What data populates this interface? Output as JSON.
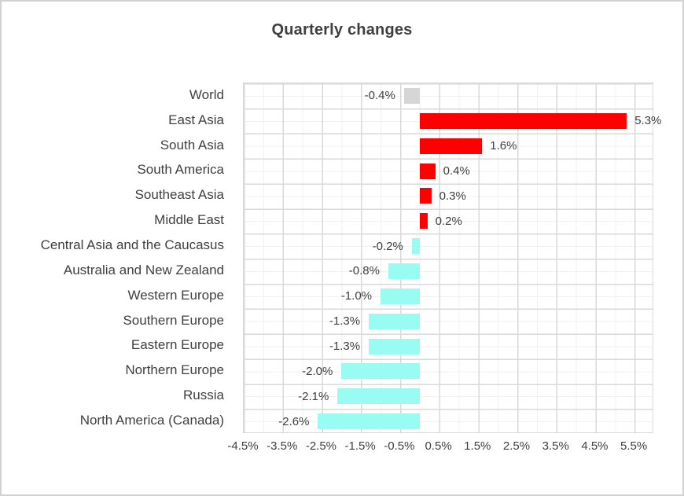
{
  "title": "Quarterly changes",
  "chart_data": {
    "type": "bar",
    "orientation": "horizontal",
    "title": "Quarterly changes",
    "xlabel": "",
    "ylabel": "",
    "legend": false,
    "grid": true,
    "categories": [
      "World",
      "East Asia",
      "South Asia",
      "South America",
      "Southeast Asia",
      "Middle East",
      "Central Asia and the Caucasus",
      "Australia and New Zealand",
      "Western Europe",
      "Southern Europe",
      "Eastern Europe",
      "Northern Europe",
      "Russia",
      "North America (Canada)"
    ],
    "values": [
      -0.4,
      5.3,
      1.6,
      0.4,
      0.3,
      0.2,
      -0.2,
      -0.8,
      -1.0,
      -1.3,
      -1.3,
      -2.0,
      -2.1,
      -2.6
    ],
    "data_labels": [
      "-0.4%",
      "5.3%",
      "1.6%",
      "0.4%",
      "0.3%",
      "0.2%",
      "-0.2%",
      "-0.8%",
      "-1.0%",
      "-1.3%",
      "-1.3%",
      "-2.0%",
      "-2.1%",
      "-2.6%"
    ],
    "bar_colors": [
      "#d6d6d6",
      "#ff0000",
      "#ff0000",
      "#ff0000",
      "#ff0000",
      "#ff0000",
      "#98fcf3",
      "#98fcf3",
      "#98fcf3",
      "#98fcf3",
      "#98fcf3",
      "#98fcf3",
      "#98fcf3",
      "#98fcf3"
    ],
    "axis": {
      "min": -4.5,
      "max": 6.0,
      "major_unit": 1.0,
      "minor_unit": 0.5,
      "ticks": [
        -4.5,
        -3.5,
        -2.5,
        -1.5,
        -0.5,
        0.5,
        1.5,
        2.5,
        3.5,
        4.5,
        5.5
      ],
      "tick_labels": [
        "-4.5%",
        "-3.5%",
        "-2.5%",
        "-1.5%",
        "-0.5%",
        "0.5%",
        "1.5%",
        "2.5%",
        "3.5%",
        "4.5%",
        "5.5%"
      ]
    },
    "colors": {
      "positive_bar": "#ff0000",
      "negative_bar": "#98fcf3",
      "world_bar": "#d6d6d6",
      "gridline_major": "#d9d9d9",
      "gridline_minor": "#f1f1f1",
      "text": "#3f3f3f"
    }
  }
}
